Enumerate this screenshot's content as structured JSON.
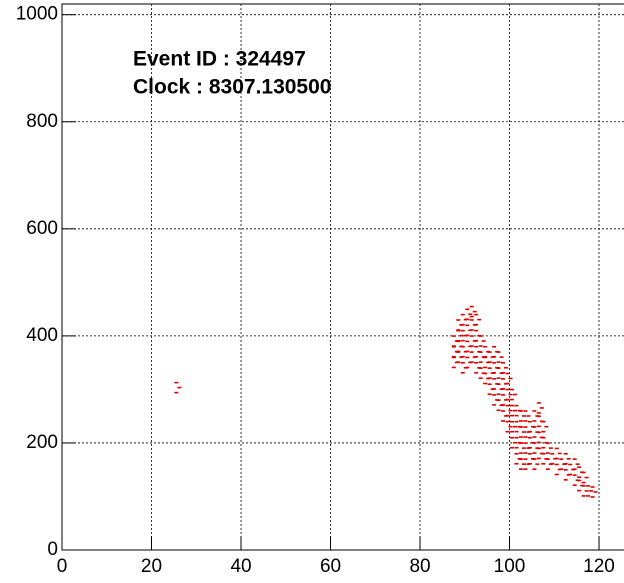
{
  "chart_data": {
    "type": "scatter",
    "annotations": [
      "Event ID : 324497",
      "Clock : 8307.130500"
    ],
    "color": "#e00000",
    "grid": true,
    "xlim": [
      0,
      125
    ],
    "ylim": [
      0,
      1020
    ],
    "xticks": [
      0,
      20,
      40,
      60,
      80,
      100,
      120
    ],
    "yticks": [
      0,
      200,
      400,
      600,
      800,
      1000
    ],
    "x": [
      88,
      88,
      88,
      89,
      89,
      89,
      89,
      90,
      90,
      90,
      90,
      91,
      91,
      91,
      91,
      92,
      92,
      92,
      92,
      93,
      93,
      93,
      93,
      94,
      94,
      94,
      95,
      95,
      95,
      96,
      96,
      96,
      97,
      97,
      97,
      97,
      98,
      98,
      98,
      98,
      99,
      99,
      99,
      99,
      100,
      100,
      100,
      100,
      101,
      101,
      101,
      101,
      102,
      102,
      102,
      102,
      103,
      103,
      103,
      103,
      104,
      104,
      104,
      104,
      105,
      105,
      105,
      106,
      106,
      106,
      106,
      107,
      107,
      107,
      107,
      108,
      108,
      108,
      109,
      109,
      110,
      111,
      111,
      112,
      113,
      113,
      114,
      115,
      115,
      116,
      116,
      117,
      117,
      118,
      119,
      26
    ],
    "y": [
      350,
      370,
      390,
      360,
      380,
      400,
      420,
      340,
      370,
      400,
      430,
      350,
      380,
      410,
      440,
      360,
      390,
      420,
      445,
      340,
      370,
      400,
      430,
      330,
      360,
      390,
      320,
      350,
      370,
      300,
      330,
      360,
      280,
      310,
      340,
      370,
      270,
      300,
      330,
      360,
      250,
      280,
      310,
      340,
      230,
      260,
      290,
      320,
      200,
      230,
      260,
      290,
      170,
      200,
      230,
      260,
      160,
      190,
      220,
      250,
      160,
      190,
      220,
      250,
      170,
      200,
      230,
      160,
      190,
      220,
      250,
      180,
      210,
      240,
      265,
      170,
      200,
      230,
      160,
      190,
      170,
      150,
      180,
      160,
      140,
      170,
      150,
      130,
      160,
      120,
      145,
      110,
      135,
      110,
      108,
      303
    ]
  }
}
